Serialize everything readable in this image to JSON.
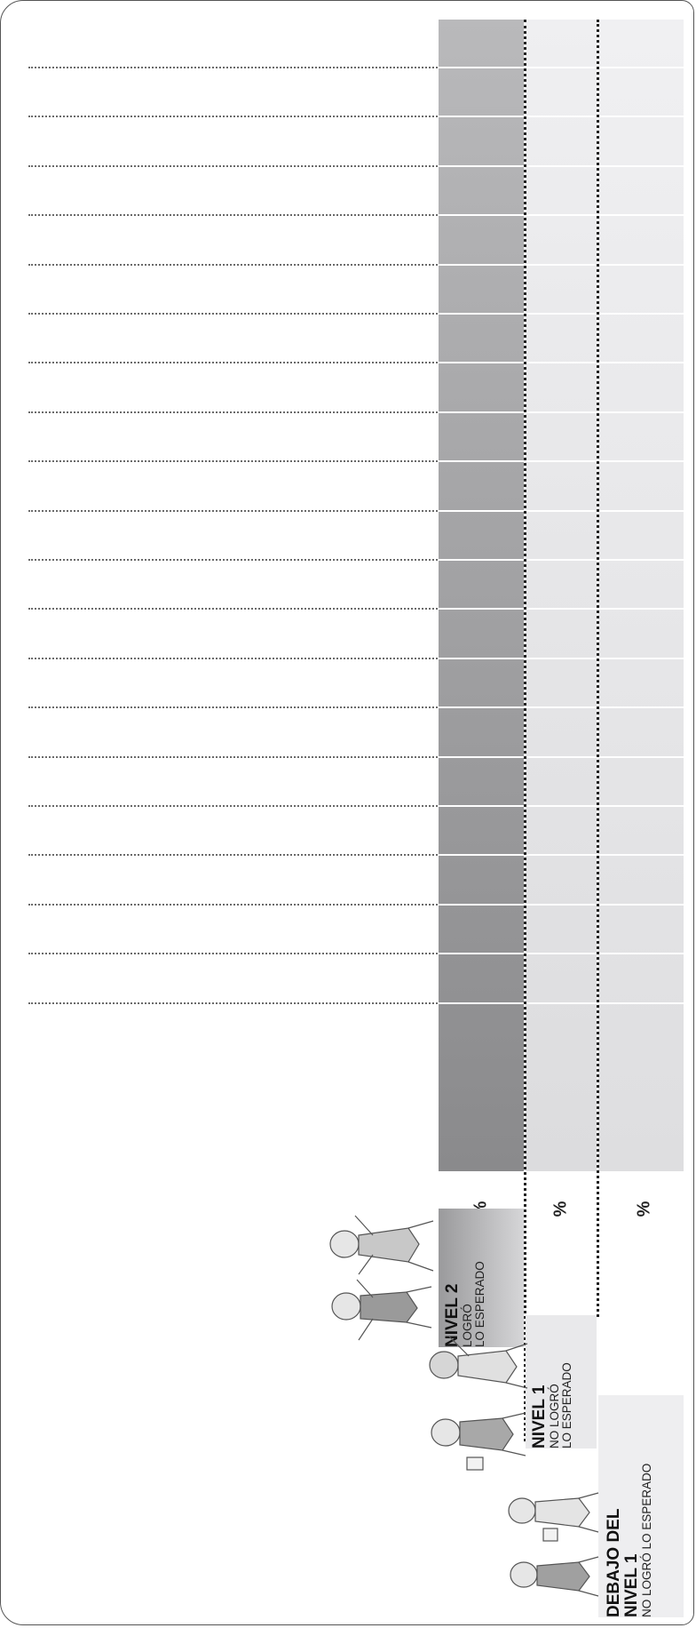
{
  "levels": [
    {
      "title": "NIVEL 2",
      "subtitle_1": "LOGRÓ",
      "subtitle_2": "LO ESPERADO",
      "percent_symbol": "%"
    },
    {
      "title": "NIVEL 1",
      "subtitle_1": "NO LOGRÓ",
      "subtitle_2": "LO ESPERADO",
      "percent_symbol": "%"
    },
    {
      "title_1": "DEBAJO DEL",
      "title_2": "NIVEL 1",
      "subtitle_1": "NO LOGRÓ LO ESPERADO",
      "percent_symbol": "%"
    }
  ],
  "answer_rows": 20,
  "colors": {
    "nivel2_bar_top": "#b9b9bb",
    "nivel2_bar_bottom": "#8a8a8c",
    "light_column": "#e6e6e8",
    "dotted_rule": "#6a6a6a"
  },
  "illustrations": [
    "children-celebrating-icon",
    "children-waving-icon",
    "children-standing-icon"
  ]
}
